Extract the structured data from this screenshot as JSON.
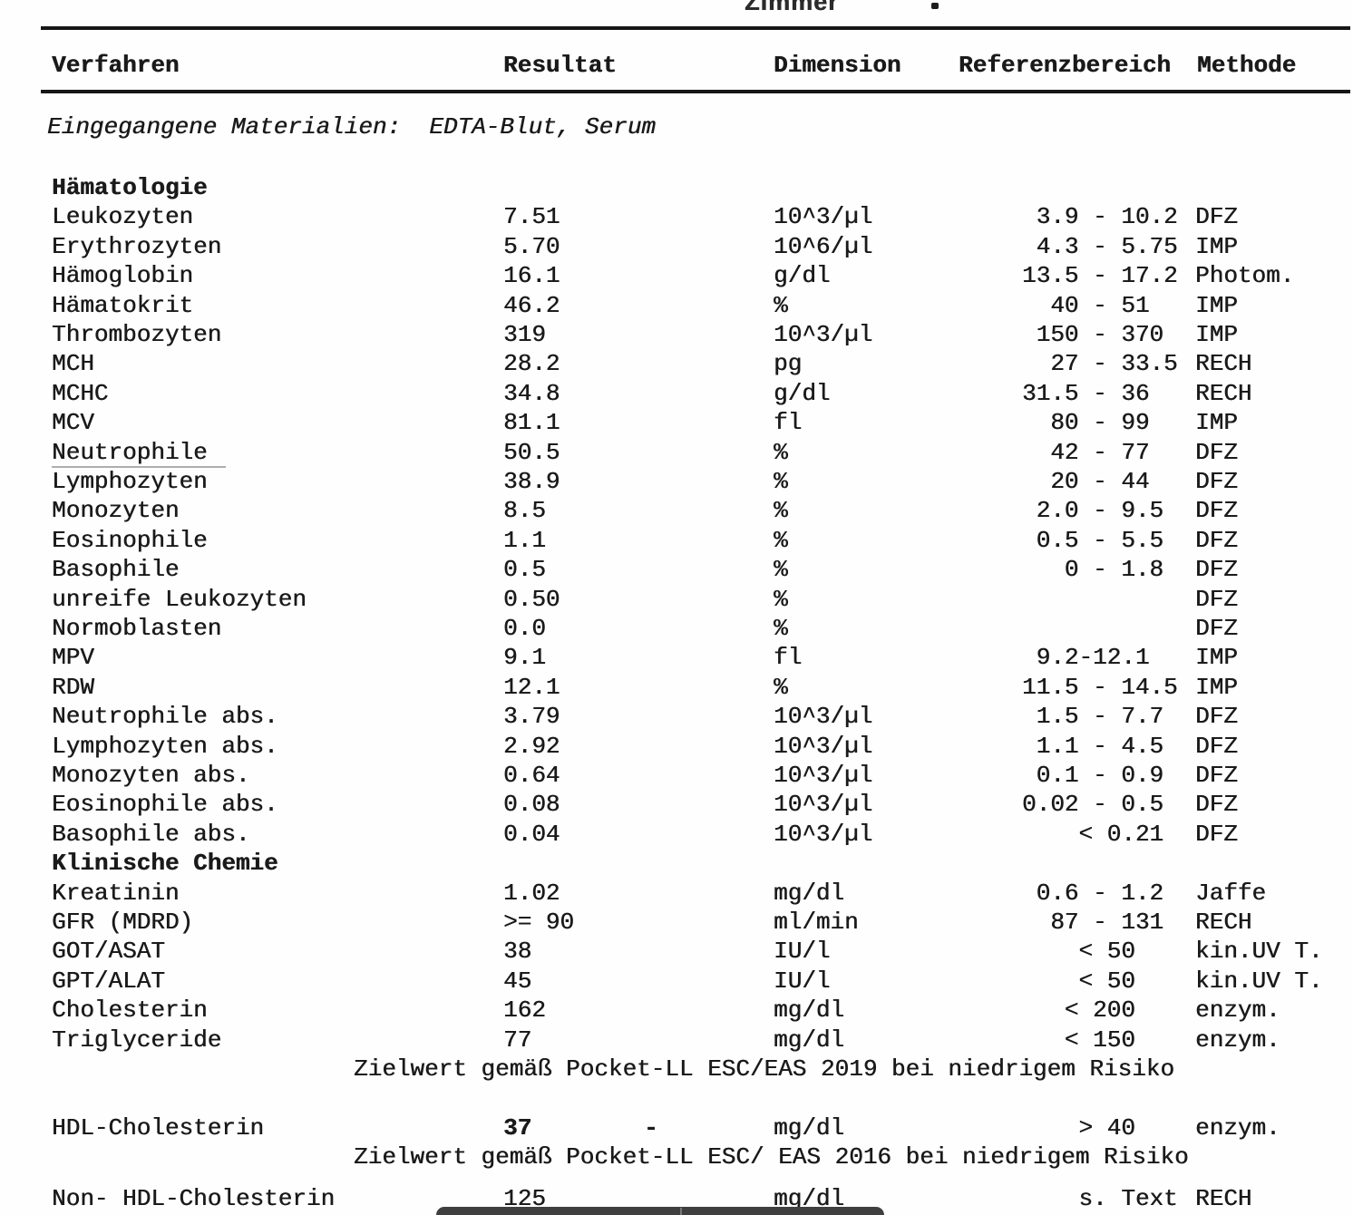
{
  "letterhead": {
    "partial_text": "Zimmer",
    "period_mark": "."
  },
  "table": {
    "headers": {
      "verfahren": "Verfahren",
      "resultat": "Resultat",
      "dimension": "Dimension",
      "referenzbereich": "Referenzbereich",
      "methode": "Methode"
    },
    "materials_line": "Eingegangene Materialien:  EDTA-Blut, Serum",
    "rows": [
      {
        "type": "section",
        "label": "Hämatologie"
      },
      {
        "type": "result",
        "verfahren": "Leukozyten",
        "resultat": "7.51",
        "dimension": "10^3/µl",
        "referenz": " 3.9 - 10.2",
        "methode": "DFZ"
      },
      {
        "type": "result",
        "verfahren": "Erythrozyten",
        "resultat": "5.70",
        "dimension": "10^6/µl",
        "referenz": " 4.3 - 5.75",
        "methode": "IMP"
      },
      {
        "type": "result",
        "verfahren": "Hämoglobin",
        "resultat": "16.1",
        "dimension": "g/dl",
        "referenz": "13.5 - 17.2",
        "methode": "Photom."
      },
      {
        "type": "result",
        "verfahren": "Hämatokrit",
        "resultat": "46.2",
        "dimension": "%",
        "referenz": "  40 - 51",
        "methode": "IMP"
      },
      {
        "type": "result",
        "verfahren": "Thrombozyten",
        "resultat": "319",
        "dimension": "10^3/µl",
        "referenz": " 150 - 370",
        "methode": "IMP"
      },
      {
        "type": "result",
        "verfahren": "MCH",
        "resultat": "28.2",
        "dimension": "pg",
        "referenz": "  27 - 33.5",
        "methode": "RECH"
      },
      {
        "type": "result",
        "verfahren": "MCHC",
        "resultat": "34.8",
        "dimension": "g/dl",
        "referenz": "31.5 - 36",
        "methode": "RECH"
      },
      {
        "type": "result",
        "verfahren": "MCV",
        "resultat": "81.1",
        "dimension": "fl",
        "referenz": "  80 - 99",
        "methode": "IMP"
      },
      {
        "type": "result",
        "verfahren": "Neutrophile",
        "resultat": "50.5",
        "dimension": "%",
        "referenz": "  42 - 77",
        "methode": "DFZ"
      },
      {
        "type": "result",
        "verfahren": "Lymphozyten",
        "resultat": "38.9",
        "dimension": "%",
        "referenz": "  20 - 44",
        "methode": "DFZ"
      },
      {
        "type": "result",
        "verfahren": "Monozyten",
        "resultat": "8.5",
        "dimension": "%",
        "referenz": " 2.0 - 9.5",
        "methode": "DFZ"
      },
      {
        "type": "result",
        "verfahren": "Eosinophile",
        "resultat": "1.1",
        "dimension": "%",
        "referenz": " 0.5 - 5.5",
        "methode": "DFZ"
      },
      {
        "type": "result",
        "verfahren": "Basophile",
        "resultat": "0.5",
        "dimension": "%",
        "referenz": "   0 - 1.8",
        "methode": "DFZ"
      },
      {
        "type": "result",
        "verfahren": "unreife Leukozyten",
        "resultat": "0.50",
        "dimension": "%",
        "referenz": "",
        "methode": "DFZ"
      },
      {
        "type": "result",
        "verfahren": "Normoblasten",
        "resultat": "0.0",
        "dimension": "%",
        "referenz": "",
        "methode": "DFZ"
      },
      {
        "type": "result",
        "verfahren": "MPV",
        "resultat": "9.1",
        "dimension": "fl",
        "referenz": " 9.2-12.1",
        "methode": "IMP"
      },
      {
        "type": "result",
        "verfahren": "RDW",
        "resultat": "12.1",
        "dimension": "%",
        "referenz": "11.5 - 14.5",
        "methode": "IMP"
      },
      {
        "type": "result",
        "verfahren": "Neutrophile abs.",
        "resultat": "3.79",
        "dimension": "10^3/µl",
        "referenz": " 1.5 - 7.7",
        "methode": "DFZ"
      },
      {
        "type": "result",
        "verfahren": "Lymphozyten abs.",
        "resultat": "2.92",
        "dimension": "10^3/µl",
        "referenz": " 1.1 - 4.5",
        "methode": "DFZ"
      },
      {
        "type": "result",
        "verfahren": "Monozyten abs.",
        "resultat": "0.64",
        "dimension": "10^3/µl",
        "referenz": " 0.1 - 0.9",
        "methode": "DFZ"
      },
      {
        "type": "result",
        "verfahren": "Eosinophile abs.",
        "resultat": "0.08",
        "dimension": "10^3/µl",
        "referenz": "0.02 - 0.5",
        "methode": "DFZ"
      },
      {
        "type": "result",
        "verfahren": "Basophile abs.",
        "resultat": "0.04",
        "dimension": "10^3/µl",
        "referenz": "    < 0.21",
        "methode": "DFZ"
      },
      {
        "type": "section",
        "label": "Klinische Chemie"
      },
      {
        "type": "result",
        "verfahren": "Kreatinin",
        "resultat": "1.02",
        "dimension": "mg/dl",
        "referenz": " 0.6 - 1.2",
        "methode": "Jaffe"
      },
      {
        "type": "result",
        "verfahren": "GFR (MDRD)",
        "resultat": ">= 90",
        "dimension": "ml/min",
        "referenz": "  87 - 131",
        "methode": "RECH"
      },
      {
        "type": "result",
        "verfahren": "GOT/ASAT",
        "resultat": "38",
        "dimension": "IU/l",
        "referenz": "    < 50",
        "methode": "kin.UV T."
      },
      {
        "type": "result",
        "verfahren": "GPT/ALAT",
        "resultat": "45",
        "dimension": "IU/l",
        "referenz": "    < 50",
        "methode": "kin.UV T."
      },
      {
        "type": "result",
        "verfahren": "Cholesterin",
        "resultat": "162",
        "dimension": "mg/dl",
        "referenz": "   < 200",
        "methode": "enzym."
      },
      {
        "type": "result",
        "verfahren": "Triglyceride",
        "resultat": "77",
        "dimension": "mg/dl",
        "referenz": "   < 150",
        "methode": "enzym."
      },
      {
        "type": "note",
        "text": "Zielwert gemäß Pocket-LL ESC/EAS 2019 bei niedrigem Risiko"
      },
      {
        "type": "blank"
      },
      {
        "type": "result",
        "verfahren": "HDL-Cholesterin",
        "resultat": "37",
        "result_bold": true,
        "marker": "-",
        "dimension": "mg/dl",
        "referenz": "    > 40",
        "methode": "enzym."
      },
      {
        "type": "note",
        "text": "Zielwert gemäß Pocket-LL ESC/ EAS 2016 bei niedrigem Risiko"
      },
      {
        "type": "gap-small"
      },
      {
        "type": "result",
        "verfahren": "Non- HDL-Cholesterin",
        "resultat": "125",
        "dimension": "mg/dl",
        "referenz": "    s. Text",
        "methode": "RECH"
      }
    ]
  },
  "colors": {
    "redaction_bar": "#3f3f3f",
    "rule": "#161616",
    "text": "#1a1a1a"
  }
}
